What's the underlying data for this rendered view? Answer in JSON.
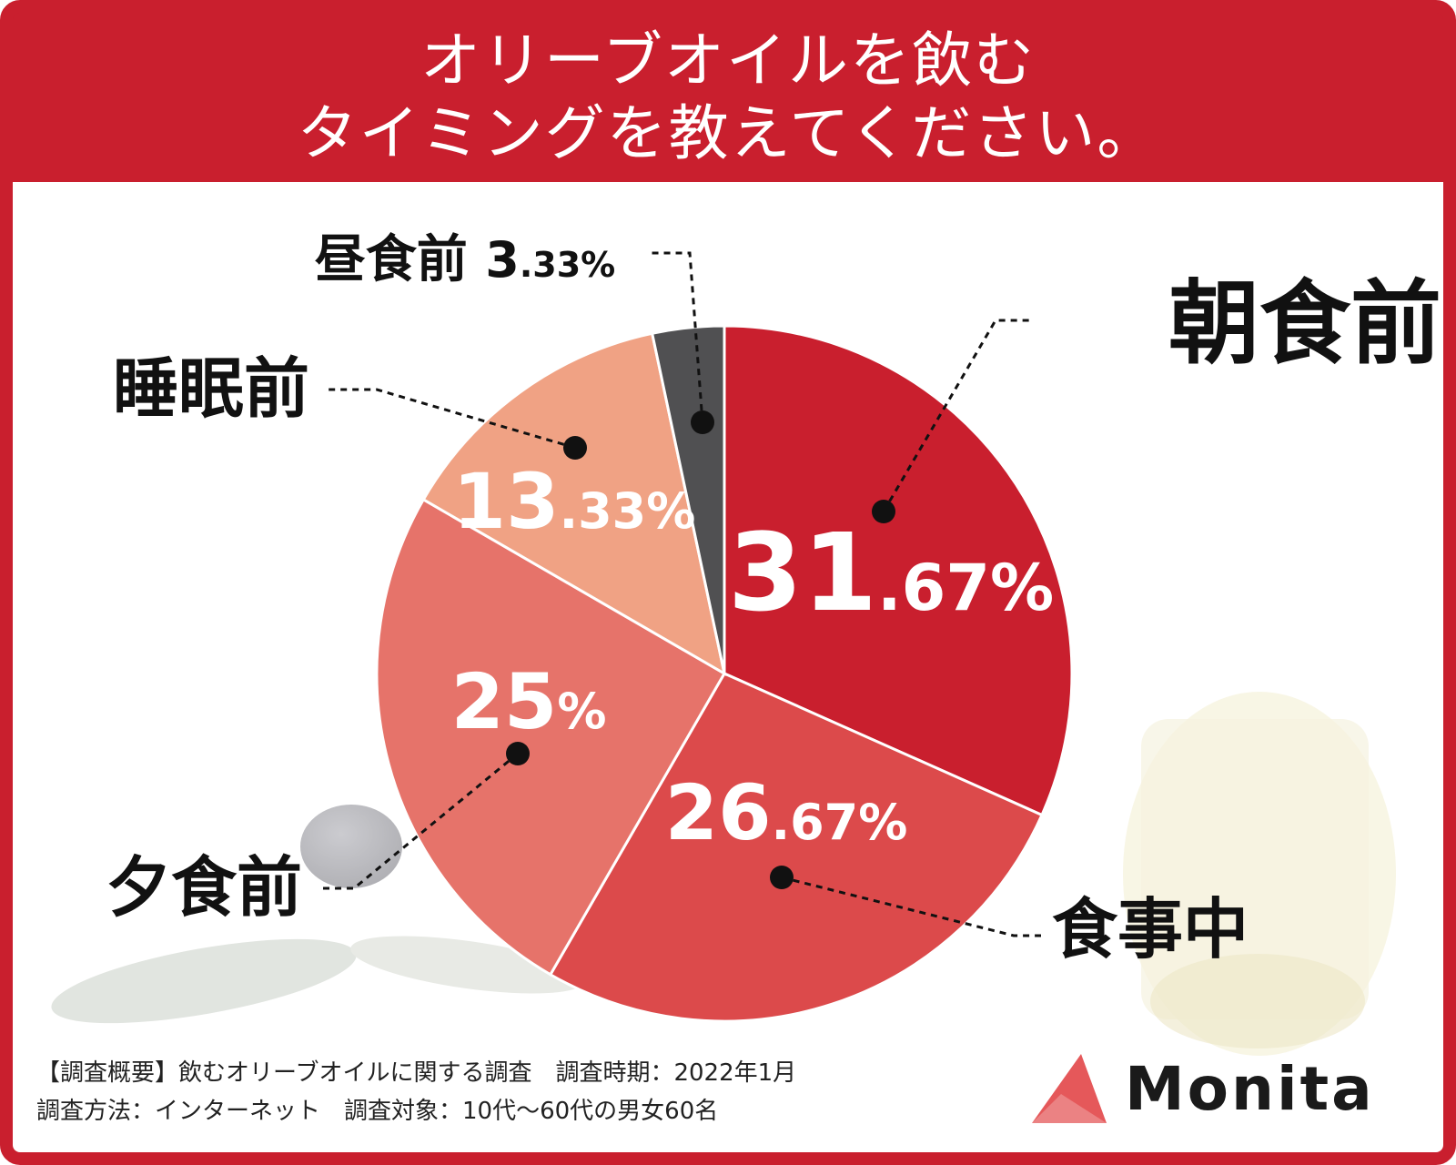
{
  "header": {
    "title_line1": "オリーブオイルを飲む",
    "title_line2": "タイミングを教えてください。"
  },
  "chart_data": {
    "type": "pie",
    "title": "オリーブオイルを飲む タイミングを教えてください。",
    "slices": [
      {
        "label": "朝食前",
        "value": 31.67,
        "display_int": "31",
        "display_dec": ".67%",
        "color": "#c91f2e"
      },
      {
        "label": "食事中",
        "value": 26.67,
        "display_int": "26",
        "display_dec": ".67%",
        "color": "#dc4a4b"
      },
      {
        "label": "夕食前",
        "value": 25,
        "display_int": "25",
        "display_dec": "%",
        "color": "#e6736a"
      },
      {
        "label": "睡眠前",
        "value": 13.33,
        "display_int": "13",
        "display_dec": ".33%",
        "color": "#f0a284"
      },
      {
        "label": "昼食前",
        "value": 3.33,
        "display_int": "3",
        "display_dec": ".33%",
        "color": "#505052"
      }
    ]
  },
  "footnote": {
    "line1": "【調査概要】飲むオリーブオイルに関する調査　調査時期：2022年1月",
    "line2": "調査方法：インターネット　調査対象：10代〜60代の男女60名"
  },
  "brand": {
    "name": "Monita",
    "logo_color": "#e5585a"
  },
  "colors": {
    "frame": "#c91f2e"
  }
}
